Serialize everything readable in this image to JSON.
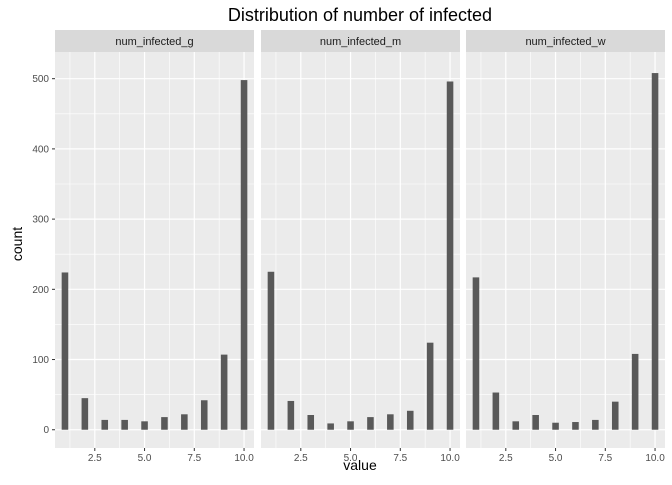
{
  "chart_data": {
    "type": "bar",
    "title": "Distribution of number of infected",
    "xlabel": "value",
    "ylabel": "count",
    "x_ticks": [
      "2.5",
      "5.0",
      "7.5",
      "10.0"
    ],
    "x_tick_values": [
      2.5,
      5.0,
      7.5,
      10.0
    ],
    "y_ticks": [
      "0",
      "100",
      "200",
      "300",
      "400",
      "500"
    ],
    "y_tick_values": [
      0,
      100,
      200,
      300,
      400,
      500
    ],
    "xlim": [
      0.5,
      10.5
    ],
    "ylim": [
      -26,
      538
    ],
    "grid": true,
    "legend": "none",
    "colors": {
      "bar": "#595959",
      "panel": "#ebebeb",
      "strip": "#d9d9d9",
      "grid": "#ffffff"
    },
    "x": [
      1,
      2,
      3,
      4,
      5,
      6,
      7,
      8,
      9,
      10
    ],
    "panels": [
      {
        "name": "num_infected_g",
        "values": [
          224,
          45,
          14,
          14,
          12,
          18,
          22,
          42,
          107,
          498
        ]
      },
      {
        "name": "num_infected_m",
        "values": [
          225,
          41,
          21,
          9,
          12,
          18,
          22,
          27,
          124,
          496
        ]
      },
      {
        "name": "num_infected_w",
        "values": [
          217,
          53,
          12,
          21,
          10,
          11,
          14,
          40,
          108,
          508
        ]
      }
    ]
  }
}
